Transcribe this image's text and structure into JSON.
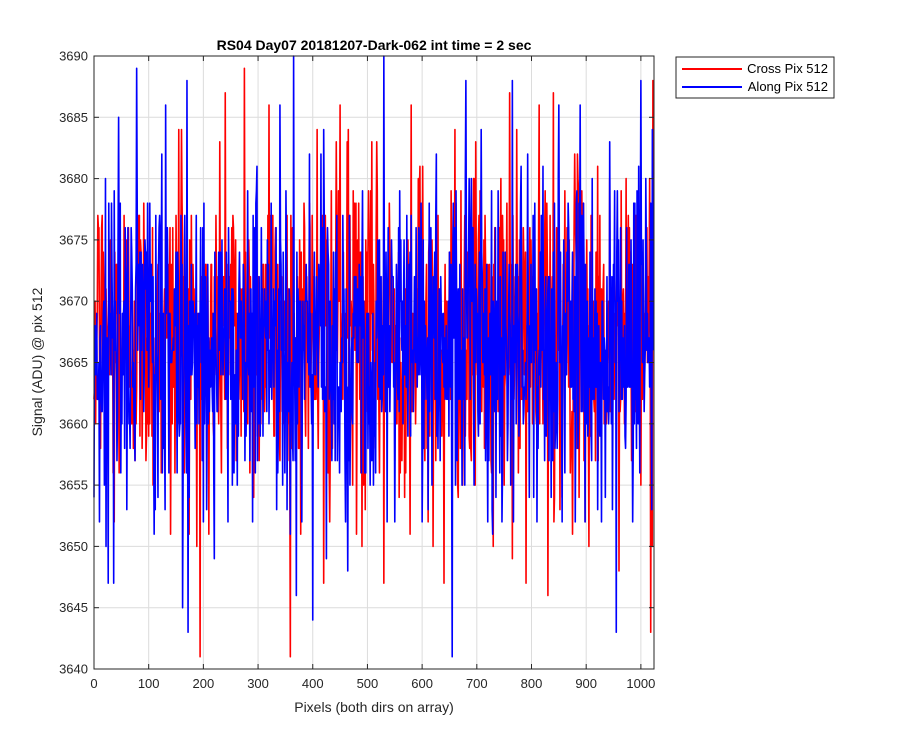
{
  "chart_data": {
    "type": "line",
    "title": "RS04 Day07 20181207-Dark-062 int time = 2 sec",
    "xlabel": "Pixels (both dirs on array)",
    "ylabel": "Signal (ADU) @ pix 512",
    "xlim": [
      0,
      1024
    ],
    "ylim": [
      3640,
      3690
    ],
    "xticks": [
      0,
      100,
      200,
      300,
      400,
      500,
      600,
      700,
      800,
      900,
      1000
    ],
    "yticks": [
      3640,
      3645,
      3650,
      3655,
      3660,
      3665,
      3670,
      3675,
      3680,
      3685,
      3690
    ],
    "grid": true,
    "legend_position": "outside-top-right",
    "n_points": 1024,
    "series": [
      {
        "name": "Cross Pix 512",
        "color": "#ff0000",
        "mean": 3667.5,
        "std": 6.5,
        "key_points": [
          [
            0,
            3662
          ],
          [
            7,
            3677
          ],
          [
            37,
            3652
          ],
          [
            140,
            3651
          ],
          [
            155,
            3684
          ],
          [
            160,
            3684
          ],
          [
            188,
            3650
          ],
          [
            210,
            3651
          ],
          [
            240,
            3687
          ],
          [
            275,
            3689
          ],
          [
            320,
            3686
          ],
          [
            408,
            3684
          ],
          [
            420,
            3647
          ],
          [
            450,
            3686
          ],
          [
            465,
            3684
          ],
          [
            490,
            3650
          ],
          [
            530,
            3647
          ],
          [
            580,
            3686
          ],
          [
            620,
            3686
          ],
          [
            620,
            3650
          ],
          [
            640,
            3647
          ],
          [
            660,
            3684
          ],
          [
            730,
            3650
          ],
          [
            760,
            3687
          ],
          [
            790,
            3647
          ],
          [
            830,
            3646
          ],
          [
            840,
            3687
          ],
          [
            905,
            3650
          ],
          [
            960,
            3648
          ],
          [
            1000,
            3655
          ],
          [
            1018,
            3643
          ],
          [
            1022,
            3688
          ]
        ]
      },
      {
        "name": "Along Pix 512",
        "color": "#0000ff",
        "mean": 3667.0,
        "std": 6.5,
        "key_points": [
          [
            0,
            3654
          ],
          [
            10,
            3652
          ],
          [
            22,
            3650
          ],
          [
            45,
            3685
          ],
          [
            60,
            3653
          ],
          [
            110,
            3651
          ],
          [
            130,
            3653
          ],
          [
            162,
            3645
          ],
          [
            170,
            3688
          ],
          [
            200,
            3652
          ],
          [
            245,
            3652
          ],
          [
            290,
            3652
          ],
          [
            340,
            3686
          ],
          [
            365,
            3690
          ],
          [
            370,
            3646
          ],
          [
            400,
            3644
          ],
          [
            425,
            3649
          ],
          [
            460,
            3652
          ],
          [
            530,
            3690
          ],
          [
            550,
            3652
          ],
          [
            600,
            3652
          ],
          [
            655,
            3641
          ],
          [
            680,
            3688
          ],
          [
            720,
            3652
          ],
          [
            765,
            3688
          ],
          [
            810,
            3652
          ],
          [
            850,
            3686
          ],
          [
            880,
            3652
          ],
          [
            955,
            3643
          ],
          [
            985,
            3652
          ],
          [
            1000,
            3688
          ],
          [
            1020,
            3653
          ]
        ]
      }
    ]
  }
}
